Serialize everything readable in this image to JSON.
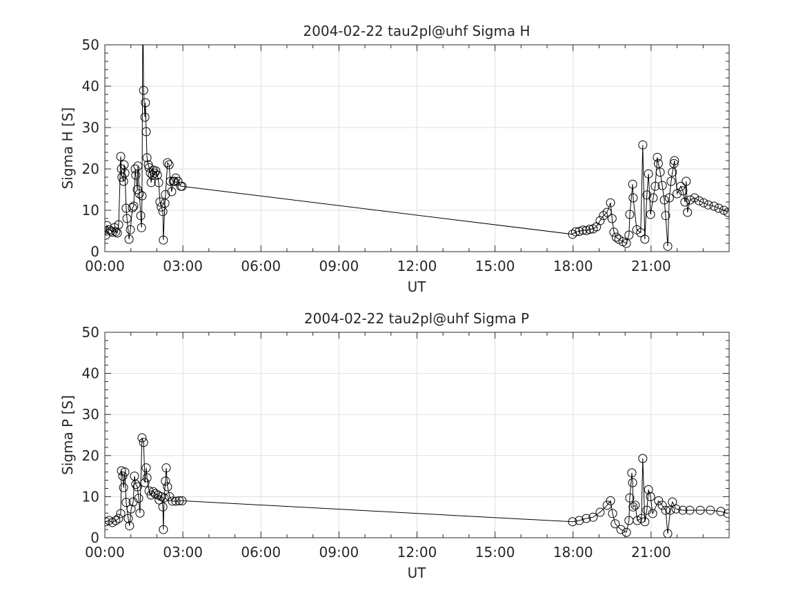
{
  "chart_data": [
    {
      "type": "line",
      "title": "2004-02-22  tau2pl@uhf Sigma H",
      "xlabel": "UT",
      "ylabel": "Sigma H [S]",
      "xlim": [
        0,
        24
      ],
      "ylim": [
        0,
        50
      ],
      "xticks": [
        0,
        3,
        6,
        9,
        12,
        15,
        18,
        21
      ],
      "xtick_labels": [
        "00:00",
        "03:00",
        "06:00",
        "09:00",
        "12:00",
        "15:00",
        "18:00",
        "21:00"
      ],
      "yticks": [
        0,
        10,
        20,
        30,
        40,
        50
      ],
      "ytick_labels": [
        "0",
        "10",
        "20",
        "30",
        "40",
        "50"
      ],
      "grid": true,
      "marker": "open-circle",
      "color": "#000000",
      "points": [
        [
          0.03,
          4
        ],
        [
          0.08,
          6.3
        ],
        [
          0.16,
          5.3
        ],
        [
          0.24,
          5
        ],
        [
          0.29,
          4.7
        ],
        [
          0.37,
          5.8
        ],
        [
          0.42,
          4.8
        ],
        [
          0.48,
          4.5
        ],
        [
          0.53,
          6.5
        ],
        [
          0.61,
          23
        ],
        [
          0.64,
          20
        ],
        [
          0.66,
          18
        ],
        [
          0.72,
          17
        ],
        [
          0.74,
          21
        ],
        [
          0.77,
          19
        ],
        [
          0.82,
          10.5
        ],
        [
          0.85,
          8
        ],
        [
          0.93,
          3
        ],
        [
          0.98,
          5.3
        ],
        [
          1.06,
          10.6
        ],
        [
          1.11,
          11
        ],
        [
          1.17,
          20
        ],
        [
          1.19,
          18.5
        ],
        [
          1.25,
          15
        ],
        [
          1.27,
          20.7
        ],
        [
          1.33,
          14
        ],
        [
          1.38,
          8.7
        ],
        [
          1.41,
          5.8
        ],
        [
          1.43,
          13.5
        ],
        [
          1.46,
          60
        ],
        [
          1.49,
          39
        ],
        [
          1.54,
          32.5
        ],
        [
          1.56,
          36
        ],
        [
          1.59,
          29
        ],
        [
          1.62,
          22.7
        ],
        [
          1.67,
          21
        ],
        [
          1.7,
          20.3
        ],
        [
          1.75,
          19
        ],
        [
          1.78,
          16.7
        ],
        [
          1.83,
          18.5
        ],
        [
          1.86,
          19.7
        ],
        [
          1.91,
          19
        ],
        [
          1.96,
          19.5
        ],
        [
          2.02,
          18.5
        ],
        [
          2.07,
          16.7
        ],
        [
          2.12,
          12
        ],
        [
          2.17,
          10.8
        ],
        [
          2.23,
          9.7
        ],
        [
          2.25,
          2.8
        ],
        [
          2.31,
          11.7
        ],
        [
          2.33,
          13.8
        ],
        [
          2.41,
          21.5
        ],
        [
          2.47,
          21
        ],
        [
          2.52,
          17
        ],
        [
          2.57,
          14.5
        ],
        [
          2.63,
          17
        ],
        [
          2.68,
          17
        ],
        [
          2.73,
          17.8
        ],
        [
          2.81,
          17
        ],
        [
          2.92,
          15.8
        ],
        [
          2.97,
          15.8
        ],
        [
          17.98,
          4.2
        ],
        [
          18.1,
          4.8
        ],
        [
          18.24,
          4.9
        ],
        [
          18.38,
          5.2
        ],
        [
          18.51,
          5.1
        ],
        [
          18.64,
          5.4
        ],
        [
          18.77,
          5.5
        ],
        [
          18.9,
          6
        ],
        [
          19.04,
          7.5
        ],
        [
          19.17,
          8.7
        ],
        [
          19.31,
          9.5
        ],
        [
          19.44,
          11.8
        ],
        [
          19.5,
          8
        ],
        [
          19.57,
          4.7
        ],
        [
          19.66,
          3.5
        ],
        [
          19.76,
          3
        ],
        [
          19.92,
          2.4
        ],
        [
          20.05,
          2
        ],
        [
          20.15,
          4
        ],
        [
          20.18,
          9
        ],
        [
          20.29,
          16.3
        ],
        [
          20.31,
          13
        ],
        [
          20.45,
          5.3
        ],
        [
          20.6,
          4.6
        ],
        [
          20.68,
          25.8
        ],
        [
          20.76,
          3
        ],
        [
          20.84,
          13.7
        ],
        [
          20.9,
          18.8
        ],
        [
          20.98,
          9
        ],
        [
          21.08,
          13
        ],
        [
          21.16,
          15.8
        ],
        [
          21.24,
          22.8
        ],
        [
          21.28,
          21.3
        ],
        [
          21.35,
          19.2
        ],
        [
          21.43,
          16
        ],
        [
          21.51,
          12.5
        ],
        [
          21.56,
          8.7
        ],
        [
          21.64,
          1.3
        ],
        [
          21.7,
          13
        ],
        [
          21.77,
          17
        ],
        [
          21.82,
          19.2
        ],
        [
          21.88,
          21.3
        ],
        [
          21.9,
          22
        ],
        [
          22.0,
          14
        ],
        [
          22.14,
          15.8
        ],
        [
          22.22,
          14.7
        ],
        [
          22.3,
          12
        ],
        [
          22.35,
          17
        ],
        [
          22.4,
          9.5
        ],
        [
          22.5,
          12.5
        ],
        [
          22.67,
          13
        ],
        [
          22.85,
          12.3
        ],
        [
          23.02,
          11.8
        ],
        [
          23.2,
          11.3
        ],
        [
          23.42,
          11
        ],
        [
          23.6,
          10.5
        ],
        [
          23.8,
          10
        ],
        [
          23.95,
          9.5
        ]
      ]
    },
    {
      "type": "line",
      "title": "2004-02-22  tau2pl@uhf Sigma P",
      "xlabel": "UT",
      "ylabel": "Sigma P [S]",
      "xlim": [
        0,
        24
      ],
      "ylim": [
        0,
        50
      ],
      "xticks": [
        0,
        3,
        6,
        9,
        12,
        15,
        18,
        21
      ],
      "xtick_labels": [
        "00:00",
        "03:00",
        "06:00",
        "09:00",
        "12:00",
        "15:00",
        "18:00",
        "21:00"
      ],
      "yticks": [
        0,
        10,
        20,
        30,
        40,
        50
      ],
      "ytick_labels": [
        "0",
        "10",
        "20",
        "30",
        "40",
        "50"
      ],
      "grid": true,
      "marker": "open-circle",
      "color": "#000000",
      "points": [
        [
          0.03,
          3.9
        ],
        [
          0.16,
          4.2
        ],
        [
          0.29,
          3.7
        ],
        [
          0.42,
          4.2
        ],
        [
          0.53,
          4.7
        ],
        [
          0.61,
          5.9
        ],
        [
          0.64,
          16.3
        ],
        [
          0.69,
          15
        ],
        [
          0.72,
          12.2
        ],
        [
          0.77,
          16
        ],
        [
          0.82,
          8.6
        ],
        [
          0.9,
          4.7
        ],
        [
          0.95,
          2.9
        ],
        [
          1.01,
          7
        ],
        [
          1.09,
          8.7
        ],
        [
          1.14,
          15
        ],
        [
          1.19,
          13
        ],
        [
          1.25,
          12.4
        ],
        [
          1.3,
          9.6
        ],
        [
          1.35,
          6
        ],
        [
          1.43,
          24.3
        ],
        [
          1.49,
          23.2
        ],
        [
          1.54,
          13.4
        ],
        [
          1.59,
          17
        ],
        [
          1.62,
          14.6
        ],
        [
          1.7,
          11.4
        ],
        [
          1.78,
          10.4
        ],
        [
          1.86,
          11.2
        ],
        [
          1.94,
          10.7
        ],
        [
          2.04,
          10.4
        ],
        [
          2.09,
          9.2
        ],
        [
          2.17,
          10
        ],
        [
          2.23,
          7.5
        ],
        [
          2.25,
          2
        ],
        [
          2.28,
          9.7
        ],
        [
          2.33,
          13.8
        ],
        [
          2.36,
          17
        ],
        [
          2.41,
          12.4
        ],
        [
          2.49,
          10
        ],
        [
          2.6,
          8.9
        ],
        [
          2.73,
          8.9
        ],
        [
          2.86,
          9
        ],
        [
          2.97,
          9
        ],
        [
          17.98,
          3.9
        ],
        [
          18.24,
          4.2
        ],
        [
          18.51,
          4.7
        ],
        [
          18.77,
          5
        ],
        [
          19.04,
          6.2
        ],
        [
          19.31,
          7.9
        ],
        [
          19.44,
          9
        ],
        [
          19.52,
          5.9
        ],
        [
          19.62,
          3.4
        ],
        [
          19.84,
          2
        ],
        [
          20.05,
          1.3
        ],
        [
          20.15,
          4.2
        ],
        [
          20.18,
          9.7
        ],
        [
          20.26,
          15.8
        ],
        [
          20.29,
          13.4
        ],
        [
          20.31,
          7.5
        ],
        [
          20.39,
          7.9
        ],
        [
          20.47,
          4.2
        ],
        [
          20.63,
          4.7
        ],
        [
          20.68,
          19.3
        ],
        [
          20.76,
          3.9
        ],
        [
          20.84,
          6.7
        ],
        [
          20.9,
          11.7
        ],
        [
          20.98,
          10
        ],
        [
          21.06,
          5.9
        ],
        [
          21.29,
          9
        ],
        [
          21.43,
          7.9
        ],
        [
          21.56,
          6.7
        ],
        [
          21.64,
          1
        ],
        [
          21.74,
          6.7
        ],
        [
          21.82,
          8.7
        ],
        [
          21.96,
          7
        ],
        [
          22.22,
          6.7
        ],
        [
          22.49,
          6.7
        ],
        [
          22.89,
          6.7
        ],
        [
          23.28,
          6.7
        ],
        [
          23.68,
          6.4
        ],
        [
          23.95,
          5.9
        ]
      ]
    }
  ]
}
